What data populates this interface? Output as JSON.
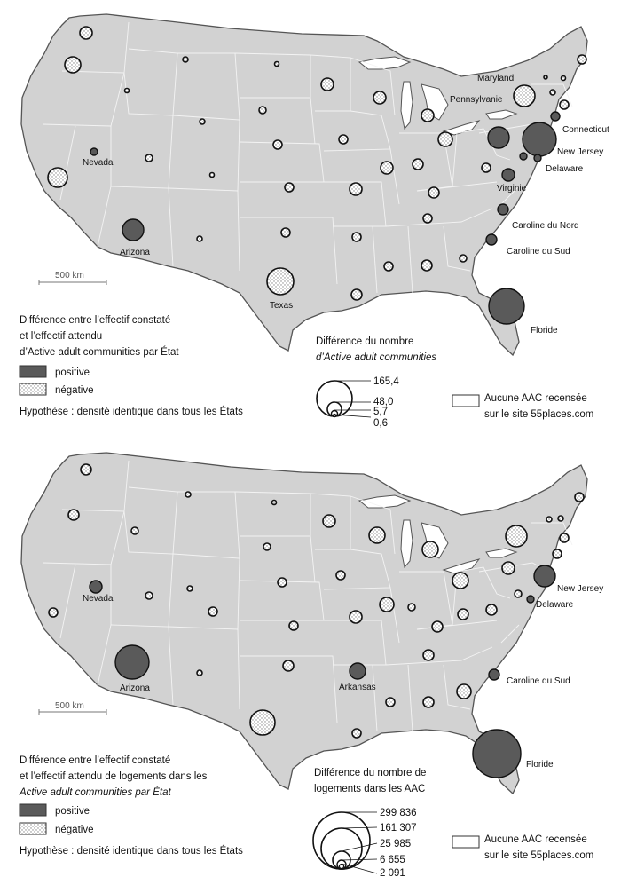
{
  "map_top": {
    "scale_label": "500 km",
    "legend_title_lines": [
      "Différence entre l’effectif constaté",
      "et l’effectif attendu",
      "d’Active adult communities par État"
    ],
    "legend_positive": "positive",
    "legend_negative": "négative",
    "hypothesis": "Hypothèse : densité identique dans tous les États",
    "size_title_lines": [
      "Différence du nombre",
      "d’Active adult communities"
    ],
    "size_values": [
      "165,4",
      "48,0",
      "5,7",
      "0,6"
    ],
    "none_line1": "Aucune AAC recensée",
    "none_line2": "sur le site 55places.com",
    "state_labels": {
      "nevada": "Nevada",
      "arizona": "Arizona",
      "texas": "Texas",
      "maryland": "Maryland",
      "pennsylvanie": "Pennsylvanie",
      "connecticut": "Connecticut",
      "new_jersey": "New Jersey",
      "delaware": "Delaware",
      "virginie": "Virginie",
      "caroline_nord": "Caroline du Nord",
      "caroline_sud": "Caroline du Sud",
      "floride": "Floride"
    }
  },
  "map_bottom": {
    "scale_label": "500 km",
    "legend_title_lines": [
      "Différence entre l’effectif constaté",
      "et l’effectif attendu de logements dans les",
      "Active adult communities par État"
    ],
    "legend_positive": "positive",
    "legend_negative": "négative",
    "hypothesis": "Hypothèse : densité identique dans tous les États",
    "size_title_lines": [
      "Différence du nombre de",
      "logements dans les AAC"
    ],
    "size_values": [
      "299 836",
      "161 307",
      "25 985",
      "6 655",
      "2 091"
    ],
    "none_line1": "Aucune AAC recensée",
    "none_line2": "sur le site 55places.com",
    "state_labels": {
      "nevada": "Nevada",
      "arizona": "Arizona",
      "arkansas": "Arkansas",
      "new_jersey": "New Jersey",
      "delaware": "Delaware",
      "caroline_sud": "Caroline du Sud",
      "floride": "Floride"
    }
  },
  "colors": {
    "positive": "#5a5a5a",
    "negative_dots": "#888888",
    "land": "#d2d2d2"
  }
}
